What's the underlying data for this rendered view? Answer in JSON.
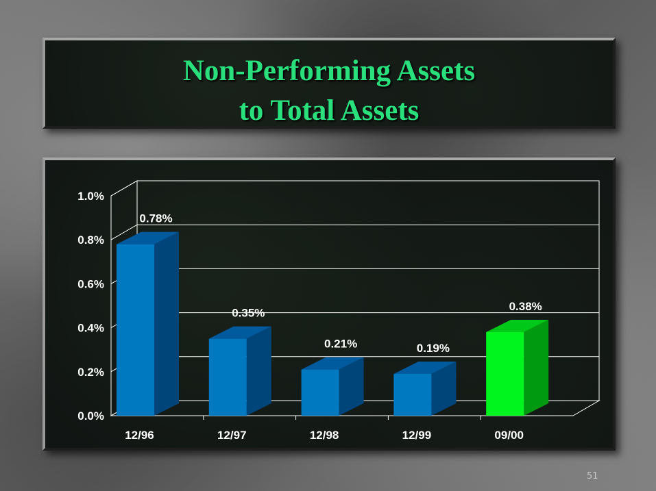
{
  "slide": {
    "title_line1": "Non-Performing Assets",
    "title_line2": "to Total Assets",
    "page_number": "51"
  },
  "colors": {
    "title": "#29e07c",
    "bar_front": "#0079c1",
    "bar_side": "#00457a",
    "bar_top": "#005a9e",
    "highlight_front": "#00f51f",
    "highlight_side": "#009a10",
    "highlight_top": "#00c818",
    "label_text": "#ffffff"
  },
  "chart_data": {
    "type": "bar",
    "categories": [
      "12/96",
      "12/97",
      "12/98",
      "12/99",
      "09/00"
    ],
    "values": [
      0.78,
      0.35,
      0.21,
      0.19,
      0.38
    ],
    "data_labels": [
      "0.78%",
      "0.35%",
      "0.21%",
      "0.19%",
      "0.38%"
    ],
    "highlight_index": 4,
    "title": "",
    "xlabel": "",
    "ylabel": "",
    "ylim": [
      0,
      1.0
    ],
    "y_ticks": [
      0.0,
      0.2,
      0.4,
      0.6,
      0.8,
      1.0
    ],
    "y_tick_labels": [
      "0.0%",
      "0.2%",
      "0.4%",
      "0.6%",
      "0.8%",
      "1.0%"
    ],
    "grid": true,
    "legend": "none",
    "style": "3d"
  }
}
